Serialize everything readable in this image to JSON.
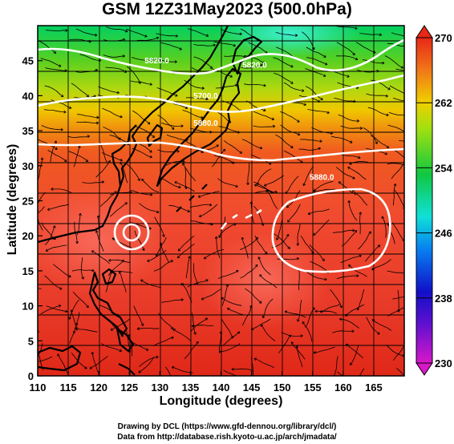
{
  "title": "GSM 12Z31May2023 (500.0hPa)",
  "credit": {
    "line1": "Drawing by DCL (https://www.gfd-dennou.org/library/dcl/)",
    "line2": "Data from http://database.rish.kyoto-u.ac.jp/arch/jmadata/"
  },
  "chart_data": {
    "type": "heatmap",
    "title": "GSM 12Z31May2023 (500.0hPa)",
    "xlabel": "Longitude (degrees)",
    "ylabel": "Latitude  (degrees)",
    "xlim": [
      110,
      170
    ],
    "ylim": [
      0,
      50
    ],
    "x_ticks": [
      110,
      115,
      120,
      125,
      130,
      135,
      140,
      145,
      150,
      155,
      160,
      165
    ],
    "y_ticks": [
      0,
      5,
      10,
      15,
      20,
      25,
      30,
      35,
      40,
      45
    ],
    "grid": true,
    "colorbar": {
      "min": 230,
      "max": 270,
      "ticks": [
        "230",
        "238",
        "246",
        "254",
        "262",
        "270"
      ],
      "placement": "right"
    },
    "contours": [
      {
        "label": "5820.0",
        "lon": 129.5,
        "lat": 44.6
      },
      {
        "label": "5820.0",
        "lon": 145.5,
        "lat": 44.0
      },
      {
        "label": "5700.0",
        "lon": 137.5,
        "lat": 39.6
      },
      {
        "label": "5880.0",
        "lon": 137.5,
        "lat": 35.7
      },
      {
        "label": "5880.0",
        "lon": 156.5,
        "lat": 28.0
      }
    ],
    "features": [
      "streamlines",
      "coastlines",
      "typhoon-vortex near 125E 22N"
    ]
  }
}
